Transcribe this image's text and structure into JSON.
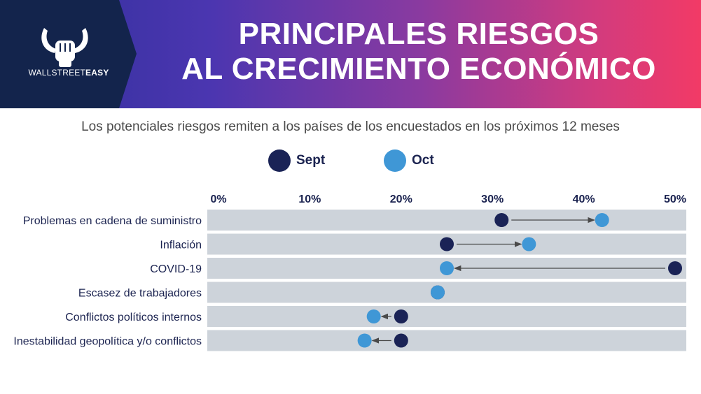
{
  "header": {
    "title_line1": "PRINCIPALES RIESGOS",
    "title_line2": "AL CRECIMIENTO ECONÓMICO",
    "brand_part1": "WALLSTREET",
    "brand_part2": "EASY"
  },
  "subtitle": "Los potenciales riesgos remiten a los países de los encuestados en los próximos 12 meses",
  "colors": {
    "sept": "#1a2356",
    "oct": "#3f97d6",
    "row_bg": "#cdd3da",
    "arrow": "#4a4a4a",
    "header_dark": "#13244c"
  },
  "chart_data": {
    "type": "scatter",
    "title": "",
    "xlim": [
      0,
      50
    ],
    "x_ticks": [
      "0%",
      "10%",
      "20%",
      "30%",
      "40%",
      "50%"
    ],
    "categories": [
      "Problemas en cadena de suministro",
      "Inflación",
      "COVID-19",
      "Escasez de trabajadores",
      "Conflictos políticos internos",
      "Inestabilidad geopolítica y/o conflictos"
    ],
    "series": [
      {
        "name": "Sept",
        "values": [
          31,
          25,
          50,
          24,
          20,
          20
        ]
      },
      {
        "name": "Oct",
        "values": [
          42,
          34,
          25,
          24,
          17,
          16
        ]
      }
    ],
    "legend_position": "top-center"
  }
}
